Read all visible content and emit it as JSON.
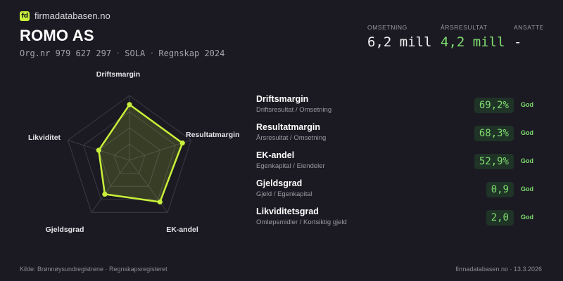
{
  "brand": {
    "logo_text": "fd",
    "name": "firmadatabasen.no"
  },
  "company": {
    "name": "ROMO AS",
    "orgnr": "Org.nr 979 627 297",
    "city": "SOLA",
    "period": "Regnskap 2024",
    "separator": "·"
  },
  "kpis": [
    {
      "label": "OMSETNING",
      "value": "6,2 mill",
      "color": "#f2f2f4"
    },
    {
      "label": "ÅRSRESULTAT",
      "value": "4,2 mill",
      "color": "#7fdd6e"
    },
    {
      "label": "ANSATTE",
      "value": "-",
      "color": "#f2f2f4"
    }
  ],
  "chart_data": {
    "type": "radar",
    "axes": [
      "Driftsmargin",
      "Resultatmargin",
      "EK-andel",
      "Gjeldsgrad",
      "Likviditet"
    ],
    "values": [
      0.86,
      0.86,
      0.8,
      0.65,
      0.5
    ],
    "range": [
      0,
      1
    ],
    "rings": 4,
    "color": "#c9f03a"
  },
  "metrics": [
    {
      "name": "Driftsmargin",
      "sub": "Driftsresultat / Omsetning",
      "value": "69,2%",
      "rating": "God"
    },
    {
      "name": "Resultatmargin",
      "sub": "Årsresultat / Omsetning",
      "value": "68,3%",
      "rating": "God"
    },
    {
      "name": "EK-andel",
      "sub": "Egenkapital / Eiendeler",
      "value": "52,9%",
      "rating": "God"
    },
    {
      "name": "Gjeldsgrad",
      "sub": "Gjeld / Egenkapital",
      "value": "0,9",
      "rating": "God"
    },
    {
      "name": "Likviditetsgrad",
      "sub": "Omløpsmidler / Kortsiktig gjeld",
      "value": "2,0",
      "rating": "God"
    }
  ],
  "footer": {
    "source": "Kilde: Brønnøysundregistrene · Regnskapsregisteret",
    "site_date": "firmadatabasen.no · 13.3.2026"
  }
}
